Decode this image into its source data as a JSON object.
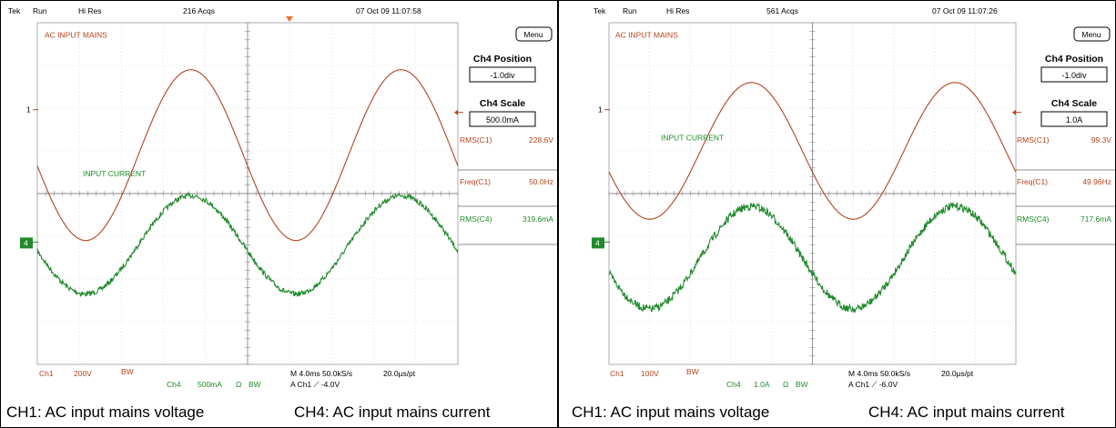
{
  "chart_data": [
    {
      "type": "line",
      "header": {
        "brand": "Tek",
        "mode": "Run",
        "acquisition": "Hi Res",
        "acqs": "216 Acqs",
        "datetime": "07 Oct 09 11:07:58"
      },
      "menu_label": "Menu",
      "position": {
        "title": "Ch4 Position",
        "value": "-1.0div"
      },
      "scale": {
        "title": "Ch4 Scale",
        "value": "500.0mA"
      },
      "measurements": [
        {
          "label": "RMS(C1)",
          "value": "228.6V"
        },
        {
          "label": "Freq(C1)",
          "value": "50.0Hz"
        },
        {
          "label": "RMS(C4)",
          "value": "319.6mA"
        }
      ],
      "trace_labels": {
        "ch1": "AC INPUT MAINS",
        "ch4": "INPUT CURRENT"
      },
      "ch1_label_row": 0,
      "ch4_label_row": 1,
      "ch1_marker": "1",
      "ch4_marker": "4",
      "footer": {
        "ch1": "Ch1",
        "ch1_scale": "200V",
        "ch1_bw": "BW",
        "ch4": "Ch4",
        "ch4_scale": "500mA",
        "ch4_ohm": "Ω",
        "ch4_bw": "BW",
        "timebase": "M 4.0ms 50.0kS/s",
        "trigger": "A  Ch1  ⟋  -4.0V",
        "res": "20.0µs/pt"
      },
      "waveforms": {
        "ch1_center_div": 3.1,
        "ch1_amp_div": 2.0,
        "ch4_center_div": 5.2,
        "ch4_amp_div": 1.15,
        "cycles": 2,
        "ch4_noise_div": 0.06
      },
      "captions": {
        "left": "CH1: AC input mains voltage",
        "right": "CH4: AC input mains current"
      }
    },
    {
      "type": "line",
      "header": {
        "brand": "Tek",
        "mode": "Run",
        "acquisition": "Hi Res",
        "acqs": "561 Acqs",
        "datetime": "07 Oct 09 11:07:26"
      },
      "menu_label": "Menu",
      "position": {
        "title": "Ch4 Position",
        "value": "-1.0div"
      },
      "scale": {
        "title": "Ch4 Scale",
        "value": "1.0A"
      },
      "measurements": [
        {
          "label": "RMS(C1)",
          "value": "99.3V"
        },
        {
          "label": "Freq(C1)",
          "value": "49.96Hz"
        },
        {
          "label": "RMS(C4)",
          "value": "717.6mA"
        }
      ],
      "trace_labels": {
        "ch1": "AC INPUT MAINS",
        "ch4": "INPUT CURRENT"
      },
      "ch1_label_row": 0,
      "ch4_label_row": 0,
      "ch1_marker": "1",
      "ch4_marker": "4",
      "footer": {
        "ch1": "Ch1",
        "ch1_scale": "100V",
        "ch1_bw": "BW",
        "ch4": "Ch4",
        "ch4_scale": "1.0A",
        "ch4_ohm": "Ω",
        "ch4_bw": "BW",
        "timebase": "M 4.0ms 50.0kS/s",
        "trigger": "A  Ch1  ⟋  -6.0V",
        "res": "20.0µs/pt"
      },
      "waveforms": {
        "ch1_center_div": 3.0,
        "ch1_amp_div": 1.6,
        "ch4_center_div": 5.5,
        "ch4_amp_div": 1.2,
        "cycles": 2,
        "ch4_noise_div": 0.09
      },
      "captions": {
        "left": "CH1: AC input mains voltage",
        "right": "CH4: AC input mains current"
      }
    }
  ]
}
